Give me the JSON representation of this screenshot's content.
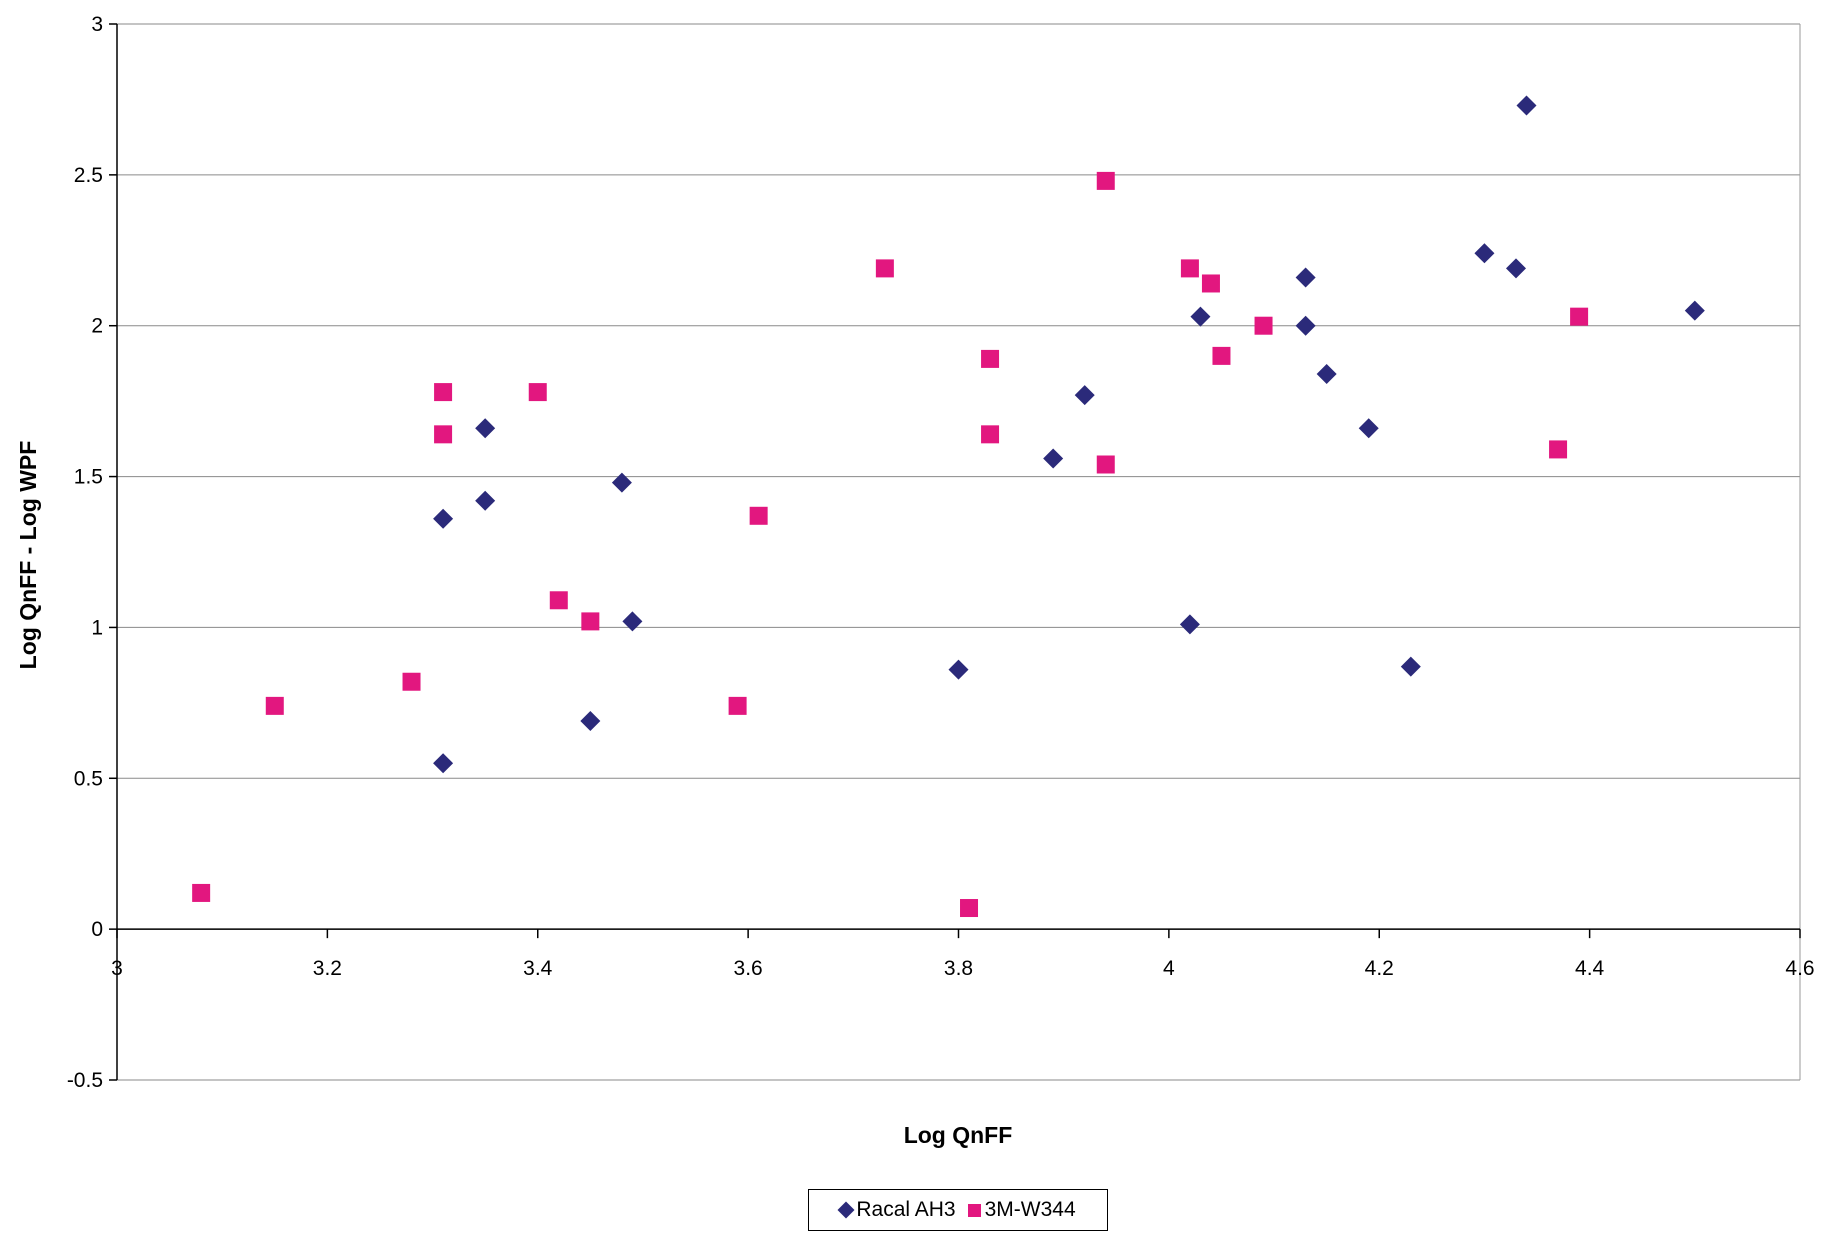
{
  "chart_data": {
    "type": "scatter",
    "title": "",
    "xlabel": "Log QnFF",
    "ylabel": "Log QnFF - Log WPF",
    "xlim": [
      3,
      4.6
    ],
    "ylim": [
      -0.5,
      3
    ],
    "xticks": [
      "3",
      "3.2",
      "3.4",
      "3.6",
      "3.8",
      "4",
      "4.2",
      "4.4",
      "4.6"
    ],
    "yticks": [
      "-0.5",
      "0",
      "0.5",
      "1",
      "1.5",
      "2",
      "2.5",
      "3"
    ],
    "grid": "horizontal",
    "legend_position": "bottom",
    "series": [
      {
        "name": "Racal AH3",
        "marker": "diamond",
        "color": "#2b2a7a",
        "points": [
          [
            3.31,
            1.36
          ],
          [
            3.31,
            0.55
          ],
          [
            3.35,
            1.66
          ],
          [
            3.35,
            1.42
          ],
          [
            3.45,
            0.69
          ],
          [
            3.48,
            1.48
          ],
          [
            3.49,
            1.02
          ],
          [
            3.8,
            0.86
          ],
          [
            3.89,
            1.56
          ],
          [
            3.92,
            1.77
          ],
          [
            4.02,
            1.01
          ],
          [
            4.03,
            2.03
          ],
          [
            4.13,
            2.16
          ],
          [
            4.13,
            2.0
          ],
          [
            4.15,
            1.84
          ],
          [
            4.19,
            1.66
          ],
          [
            4.23,
            0.87
          ],
          [
            4.3,
            2.24
          ],
          [
            4.33,
            2.19
          ],
          [
            4.34,
            2.73
          ],
          [
            4.5,
            2.05
          ]
        ]
      },
      {
        "name": "3M-W344",
        "marker": "square",
        "color": "#e2177f",
        "points": [
          [
            3.08,
            0.12
          ],
          [
            3.15,
            0.74
          ],
          [
            3.28,
            0.82
          ],
          [
            3.31,
            1.78
          ],
          [
            3.31,
            1.64
          ],
          [
            3.4,
            1.78
          ],
          [
            3.42,
            1.09
          ],
          [
            3.45,
            1.02
          ],
          [
            3.59,
            0.74
          ],
          [
            3.61,
            1.37
          ],
          [
            3.73,
            2.19
          ],
          [
            3.81,
            0.07
          ],
          [
            3.83,
            1.89
          ],
          [
            3.83,
            1.64
          ],
          [
            3.94,
            2.48
          ],
          [
            3.94,
            1.54
          ],
          [
            4.02,
            2.19
          ],
          [
            4.04,
            2.14
          ],
          [
            4.05,
            1.9
          ],
          [
            4.09,
            2.0
          ],
          [
            4.37,
            1.59
          ],
          [
            4.39,
            2.03
          ]
        ]
      }
    ]
  }
}
